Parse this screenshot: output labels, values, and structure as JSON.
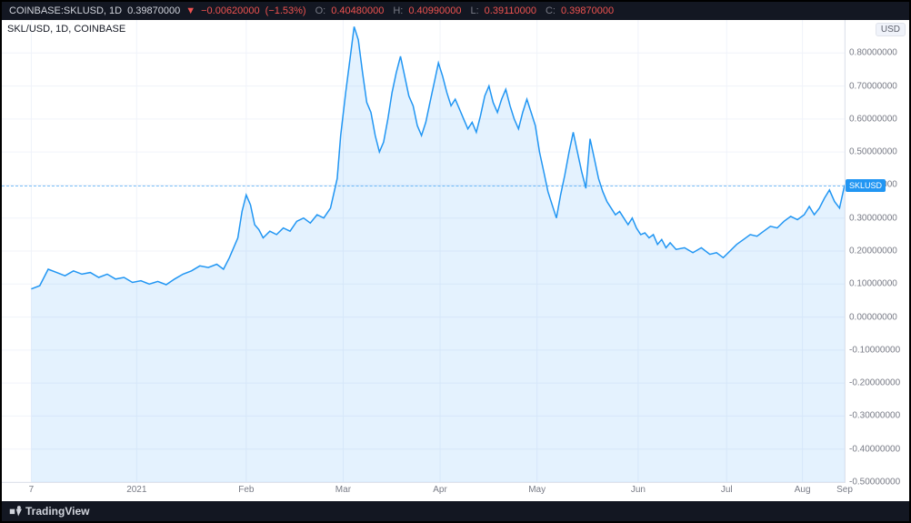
{
  "header": {
    "symbol_full": "COINBASE:SKLUSD, 1D",
    "price": "0.39870000",
    "change": "−0.00620000",
    "change_pct": "(−1.53%)",
    "o_label": "O:",
    "o_value": "0.40480000",
    "h_label": "H:",
    "h_value": "0.40990000",
    "l_label": "L:",
    "l_value": "0.39110000",
    "c_label": "C:",
    "c_value": "0.39870000"
  },
  "chart_title": "SKL/USD, 1D, COINBASE",
  "unit": "USD",
  "y_axis": {
    "min": -0.5,
    "max": 0.9,
    "ticks": [
      0.8,
      0.7,
      0.6,
      0.5,
      0.4,
      0.3,
      0.2,
      0.1,
      0.0,
      -0.1,
      -0.2,
      -0.3,
      -0.4,
      -0.5
    ],
    "tick_labels": [
      "0.80000000",
      "0.70000000",
      "0.60000000",
      "0.50000000",
      "0.40000000",
      "0.30000000",
      "0.20000000",
      "0.10000000",
      "0.00000000",
      "-0.10000000",
      "-0.20000000",
      "-0.30000000",
      "-0.40000000",
      "-0.50000000"
    ]
  },
  "x_axis": {
    "ticks": [
      {
        "pos": 0.035,
        "label": "7"
      },
      {
        "pos": 0.16,
        "label": "2021"
      },
      {
        "pos": 0.29,
        "label": "Feb"
      },
      {
        "pos": 0.405,
        "label": "Mar"
      },
      {
        "pos": 0.52,
        "label": "Apr"
      },
      {
        "pos": 0.635,
        "label": "May"
      },
      {
        "pos": 0.755,
        "label": "Jun"
      },
      {
        "pos": 0.86,
        "label": "Jul"
      },
      {
        "pos": 0.95,
        "label": "Aug"
      },
      {
        "pos": 1.0,
        "label": "Sep"
      }
    ]
  },
  "price_tag": {
    "label": "SKLUSD",
    "value": 0.3987
  },
  "series": {
    "type": "area",
    "line_color": "#2196f3",
    "fill_color": "rgba(33,150,243,0.12)",
    "line_width": 1.5,
    "background_color": "#ffffff",
    "grid_color": "#f0f3fa",
    "xlim": [
      0,
      1
    ],
    "ylim": [
      -0.5,
      0.9
    ],
    "points": [
      [
        0.035,
        0.085
      ],
      [
        0.045,
        0.095
      ],
      [
        0.055,
        0.145
      ],
      [
        0.065,
        0.135
      ],
      [
        0.075,
        0.125
      ],
      [
        0.085,
        0.14
      ],
      [
        0.095,
        0.13
      ],
      [
        0.105,
        0.135
      ],
      [
        0.115,
        0.12
      ],
      [
        0.125,
        0.13
      ],
      [
        0.135,
        0.115
      ],
      [
        0.145,
        0.12
      ],
      [
        0.155,
        0.105
      ],
      [
        0.165,
        0.11
      ],
      [
        0.175,
        0.1
      ],
      [
        0.185,
        0.108
      ],
      [
        0.195,
        0.098
      ],
      [
        0.205,
        0.115
      ],
      [
        0.215,
        0.13
      ],
      [
        0.225,
        0.14
      ],
      [
        0.235,
        0.155
      ],
      [
        0.245,
        0.15
      ],
      [
        0.255,
        0.16
      ],
      [
        0.263,
        0.145
      ],
      [
        0.27,
        0.18
      ],
      [
        0.28,
        0.24
      ],
      [
        0.285,
        0.32
      ],
      [
        0.29,
        0.37
      ],
      [
        0.295,
        0.34
      ],
      [
        0.3,
        0.28
      ],
      [
        0.305,
        0.265
      ],
      [
        0.31,
        0.24
      ],
      [
        0.318,
        0.26
      ],
      [
        0.326,
        0.25
      ],
      [
        0.334,
        0.27
      ],
      [
        0.342,
        0.26
      ],
      [
        0.35,
        0.29
      ],
      [
        0.358,
        0.3
      ],
      [
        0.366,
        0.285
      ],
      [
        0.374,
        0.31
      ],
      [
        0.382,
        0.3
      ],
      [
        0.39,
        0.33
      ],
      [
        0.398,
        0.42
      ],
      [
        0.402,
        0.55
      ],
      [
        0.408,
        0.68
      ],
      [
        0.413,
        0.78
      ],
      [
        0.418,
        0.88
      ],
      [
        0.423,
        0.84
      ],
      [
        0.428,
        0.74
      ],
      [
        0.433,
        0.65
      ],
      [
        0.438,
        0.62
      ],
      [
        0.443,
        0.55
      ],
      [
        0.448,
        0.5
      ],
      [
        0.453,
        0.53
      ],
      [
        0.458,
        0.6
      ],
      [
        0.463,
        0.68
      ],
      [
        0.468,
        0.74
      ],
      [
        0.473,
        0.79
      ],
      [
        0.478,
        0.73
      ],
      [
        0.483,
        0.67
      ],
      [
        0.488,
        0.64
      ],
      [
        0.493,
        0.58
      ],
      [
        0.498,
        0.55
      ],
      [
        0.503,
        0.59
      ],
      [
        0.508,
        0.65
      ],
      [
        0.513,
        0.71
      ],
      [
        0.518,
        0.77
      ],
      [
        0.523,
        0.73
      ],
      [
        0.528,
        0.68
      ],
      [
        0.533,
        0.64
      ],
      [
        0.538,
        0.66
      ],
      [
        0.543,
        0.63
      ],
      [
        0.548,
        0.6
      ],
      [
        0.553,
        0.57
      ],
      [
        0.558,
        0.59
      ],
      [
        0.563,
        0.56
      ],
      [
        0.568,
        0.61
      ],
      [
        0.573,
        0.67
      ],
      [
        0.578,
        0.7
      ],
      [
        0.583,
        0.65
      ],
      [
        0.588,
        0.62
      ],
      [
        0.593,
        0.66
      ],
      [
        0.598,
        0.69
      ],
      [
        0.603,
        0.64
      ],
      [
        0.608,
        0.6
      ],
      [
        0.613,
        0.57
      ],
      [
        0.618,
        0.62
      ],
      [
        0.623,
        0.66
      ],
      [
        0.628,
        0.62
      ],
      [
        0.633,
        0.58
      ],
      [
        0.638,
        0.5
      ],
      [
        0.643,
        0.44
      ],
      [
        0.648,
        0.38
      ],
      [
        0.653,
        0.34
      ],
      [
        0.658,
        0.3
      ],
      [
        0.663,
        0.37
      ],
      [
        0.668,
        0.43
      ],
      [
        0.673,
        0.5
      ],
      [
        0.678,
        0.56
      ],
      [
        0.683,
        0.5
      ],
      [
        0.688,
        0.44
      ],
      [
        0.693,
        0.39
      ],
      [
        0.698,
        0.54
      ],
      [
        0.703,
        0.48
      ],
      [
        0.708,
        0.42
      ],
      [
        0.713,
        0.38
      ],
      [
        0.718,
        0.35
      ],
      [
        0.723,
        0.33
      ],
      [
        0.728,
        0.31
      ],
      [
        0.733,
        0.32
      ],
      [
        0.738,
        0.3
      ],
      [
        0.743,
        0.28
      ],
      [
        0.748,
        0.3
      ],
      [
        0.753,
        0.27
      ],
      [
        0.758,
        0.25
      ],
      [
        0.763,
        0.255
      ],
      [
        0.768,
        0.24
      ],
      [
        0.773,
        0.25
      ],
      [
        0.778,
        0.22
      ],
      [
        0.783,
        0.235
      ],
      [
        0.788,
        0.21
      ],
      [
        0.793,
        0.225
      ],
      [
        0.8,
        0.205
      ],
      [
        0.81,
        0.21
      ],
      [
        0.82,
        0.195
      ],
      [
        0.83,
        0.21
      ],
      [
        0.84,
        0.19
      ],
      [
        0.848,
        0.195
      ],
      [
        0.856,
        0.18
      ],
      [
        0.864,
        0.2
      ],
      [
        0.872,
        0.22
      ],
      [
        0.88,
        0.235
      ],
      [
        0.888,
        0.25
      ],
      [
        0.896,
        0.245
      ],
      [
        0.904,
        0.26
      ],
      [
        0.912,
        0.275
      ],
      [
        0.92,
        0.27
      ],
      [
        0.928,
        0.29
      ],
      [
        0.936,
        0.305
      ],
      [
        0.944,
        0.295
      ],
      [
        0.952,
        0.31
      ],
      [
        0.958,
        0.335
      ],
      [
        0.964,
        0.31
      ],
      [
        0.97,
        0.33
      ],
      [
        0.976,
        0.36
      ],
      [
        0.982,
        0.385
      ],
      [
        0.988,
        0.35
      ],
      [
        0.994,
        0.33
      ],
      [
        1.0,
        0.4
      ]
    ]
  },
  "footer": {
    "brand": "TradingView"
  }
}
